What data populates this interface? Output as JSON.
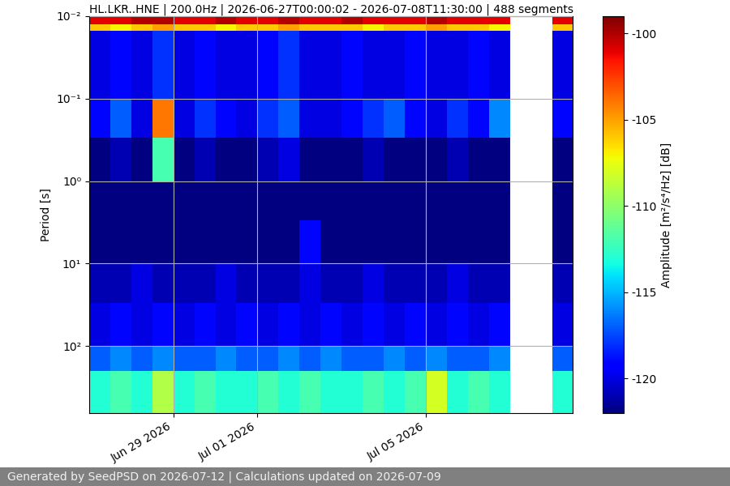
{
  "chart_data": {
    "type": "heatmap",
    "title": "HL.LKR..HNE | 200.0Hz | 2026-06-27T00:00:02 - 2026-07-08T11:30:00 | 488 segments",
    "y_label": "Period [s]",
    "footer": "Generated by SeedPSD on 2026-07-12 | Calculations updated on 2026-07-09",
    "log": "y",
    "grid": true,
    "xlim": [
      "2026-06-27T00:00:02",
      "2026-07-08T11:30:00"
    ],
    "xticks": [
      {
        "value": "2026-06-29T00:00:00",
        "label": "Jun 29 2026"
      },
      {
        "value": "2026-07-01T00:00:00",
        "label": "Jul 01 2026"
      },
      {
        "value": "2026-07-05T00:00:00",
        "label": "Jul 05 2026"
      }
    ],
    "ylim": [
      650,
      0.01
    ],
    "yticks": [
      {
        "value": 0.01,
        "label": "10⁻²"
      },
      {
        "value": 0.1,
        "label": "10⁻¹"
      },
      {
        "value": 1,
        "label": "10⁰"
      },
      {
        "value": 10,
        "label": "10¹"
      },
      {
        "value": 100,
        "label": "10²"
      }
    ],
    "x_edges": [
      "2026-06-27T00:00:00",
      "2026-06-27T12:00:00",
      "2026-06-28T00:00:00",
      "2026-06-28T12:00:00",
      "2026-06-29T00:00:00",
      "2026-06-29T12:00:00",
      "2026-06-30T00:00:00",
      "2026-06-30T12:00:00",
      "2026-07-01T00:00:00",
      "2026-07-01T12:00:00",
      "2026-07-02T00:00:00",
      "2026-07-02T12:00:00",
      "2026-07-03T00:00:00",
      "2026-07-03T12:00:00",
      "2026-07-04T00:00:00",
      "2026-07-04T12:00:00",
      "2026-07-05T00:00:00",
      "2026-07-05T12:00:00",
      "2026-07-06T00:00:00",
      "2026-07-06T12:00:00",
      "2026-07-07T00:00:00",
      "2026-07-07T12:00:00",
      "2026-07-08T00:00:00",
      "2026-07-08T12:00:00"
    ],
    "y_edges": [
      0.01,
      0.0125,
      0.015,
      0.1,
      0.3,
      1,
      3,
      10,
      30,
      100,
      200,
      650
    ],
    "cells": [
      [
        -101,
        -101,
        -100,
        -100,
        -101,
        -101,
        -100,
        -101,
        -101,
        -100,
        -101,
        -101,
        -100,
        -101,
        -101,
        -101,
        -100,
        -101,
        -101,
        -101,
        null,
        null,
        -101
      ],
      [
        -106,
        -107,
        -106,
        -105,
        -106,
        -106,
        -107,
        -106,
        -106,
        -105,
        -106,
        -106,
        -106,
        -107,
        -106,
        -106,
        -105,
        -106,
        -106,
        -107,
        null,
        null,
        -106
      ],
      [
        -120,
        -119,
        -120,
        -118,
        -120,
        -119,
        -120,
        -120,
        -119,
        -118,
        -120,
        -120,
        -119,
        -120,
        -120,
        -119,
        -120,
        -120,
        -119,
        -120,
        null,
        null,
        -120
      ],
      [
        -119,
        -117,
        -120,
        -104,
        -120,
        -118,
        -119,
        -120,
        -118,
        -117,
        -120,
        -120,
        -119,
        -118,
        -117,
        -119,
        -120,
        -118,
        -119,
        -116,
        null,
        null,
        -119
      ],
      [
        -122,
        -121,
        -122,
        -112,
        -122,
        -121,
        -122,
        -122,
        -121,
        -120,
        -122,
        -122,
        -122,
        -121,
        -122,
        -122,
        -122,
        -121,
        -122,
        -122,
        null,
        null,
        -122
      ],
      [
        -122,
        -122,
        -122,
        -122,
        -122,
        -122,
        -122,
        -122,
        -122,
        -122,
        -122,
        -122,
        -122,
        -122,
        -122,
        -122,
        -122,
        -122,
        -122,
        -122,
        null,
        null,
        -122
      ],
      [
        -122,
        -122,
        -122,
        -122,
        -122,
        -122,
        -122,
        -122,
        -122,
        -122,
        -119,
        -122,
        -122,
        -122,
        -122,
        -122,
        -122,
        -122,
        -122,
        -122,
        null,
        null,
        -122
      ],
      [
        -121,
        -121,
        -120,
        -121,
        -121,
        -121,
        -120,
        -121,
        -121,
        -121,
        -120,
        -121,
        -121,
        -120,
        -121,
        -121,
        -121,
        -120,
        -121,
        -121,
        null,
        null,
        -121
      ],
      [
        -120,
        -119,
        -120,
        -119,
        -120,
        -119,
        -120,
        -119,
        -120,
        -119,
        -120,
        -119,
        -120,
        -119,
        -120,
        -119,
        -120,
        -119,
        -120,
        -119,
        null,
        null,
        -120
      ],
      [
        -117,
        -116,
        -117,
        -116,
        -117,
        -117,
        -116,
        -117,
        -117,
        -116,
        -117,
        -116,
        -117,
        -117,
        -116,
        -117,
        -116,
        -117,
        -117,
        -116,
        null,
        null,
        -117
      ],
      [
        -113,
        -112,
        -113,
        -109,
        -113,
        -112,
        -113,
        -113,
        -112,
        -113,
        -112,
        -113,
        -113,
        -112,
        -113,
        -112,
        -108,
        -113,
        -112,
        -113,
        null,
        null,
        -113
      ]
    ],
    "colorbar": {
      "label": "Amplitude [m²/s⁴/Hz] [dB]",
      "lim": [
        -122,
        -99
      ],
      "ticks": [
        -100,
        -105,
        -110,
        -115,
        -120
      ]
    }
  }
}
